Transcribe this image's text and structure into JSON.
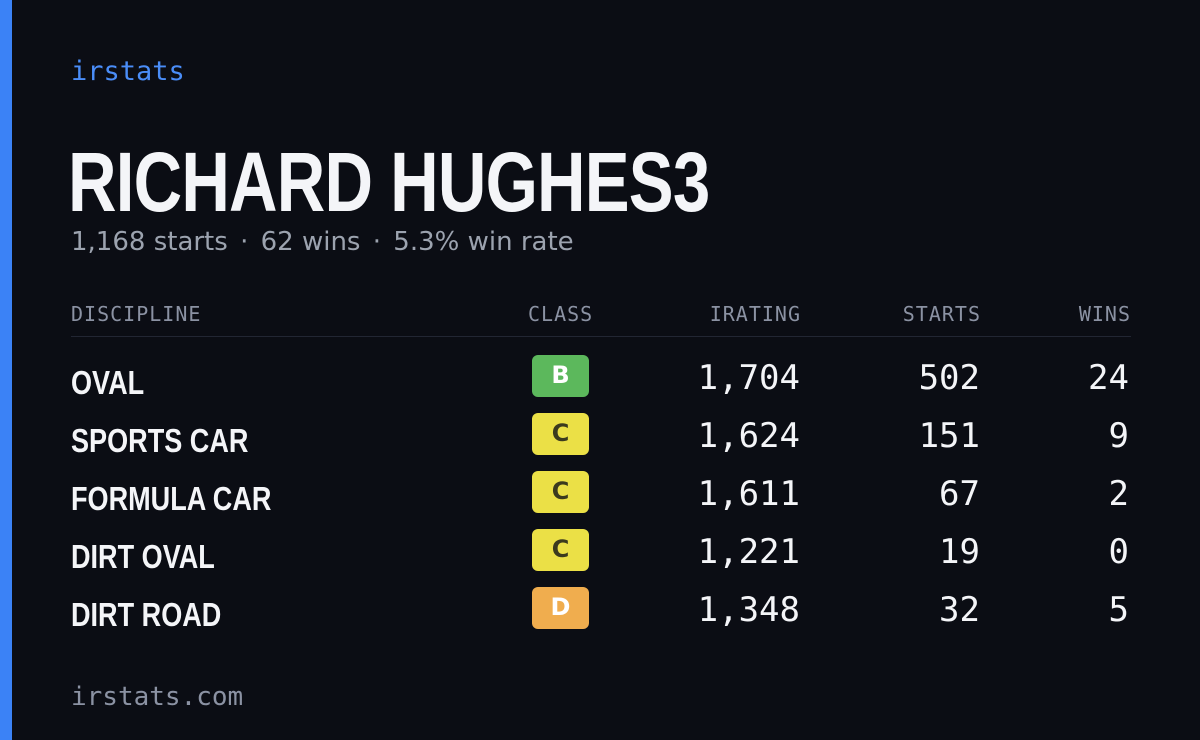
{
  "brand": "irstats",
  "driver": {
    "name": "RICHARD HUGHES3",
    "summary": {
      "starts": "1,168 starts",
      "wins": "62 wins",
      "win_rate": "5.3% win rate",
      "separator": "·"
    }
  },
  "table": {
    "headers": {
      "discipline": "DISCIPLINE",
      "class": "CLASS",
      "irating": "IRATING",
      "starts": "STARTS",
      "wins": "WINS"
    },
    "rows": [
      {
        "discipline": "OVAL",
        "class": "B",
        "class_color": "#5cb85c",
        "class_text_color": "#ffffff",
        "irating": "1,704",
        "starts": "502",
        "wins": "24"
      },
      {
        "discipline": "SPORTS CAR",
        "class": "C",
        "class_color": "#ebe046",
        "class_text_color": "#3b3a1e",
        "irating": "1,624",
        "starts": "151",
        "wins": "9"
      },
      {
        "discipline": "FORMULA CAR",
        "class": "C",
        "class_color": "#ebe046",
        "class_text_color": "#3b3a1e",
        "irating": "1,611",
        "starts": "67",
        "wins": "2"
      },
      {
        "discipline": "DIRT OVAL",
        "class": "C",
        "class_color": "#ebe046",
        "class_text_color": "#3b3a1e",
        "irating": "1,221",
        "starts": "19",
        "wins": "0"
      },
      {
        "discipline": "DIRT ROAD",
        "class": "D",
        "class_color": "#f0ad4e",
        "class_text_color": "#ffffff",
        "irating": "1,348",
        "starts": "32",
        "wins": "5"
      }
    ]
  },
  "footer": "irstats.com",
  "colors": {
    "background": "#0b0d14",
    "accent": "#3b82f6",
    "brand": "#4a8df8",
    "text_primary": "#f4f5f8",
    "text_muted": "#9ca3af"
  }
}
